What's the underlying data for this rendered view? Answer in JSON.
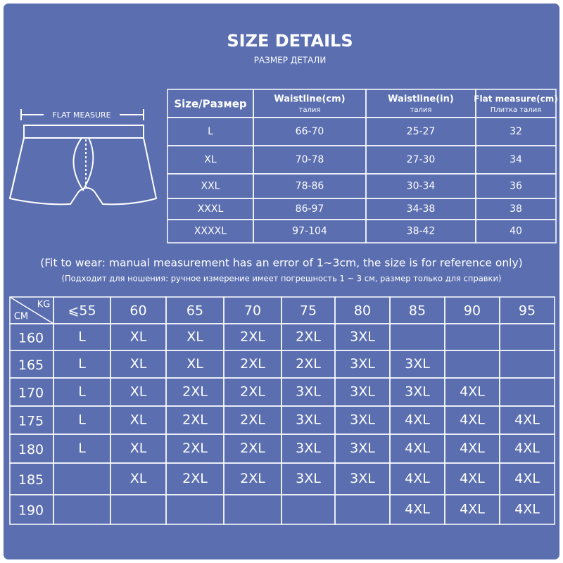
{
  "header": {
    "title": "SIZE DETAILS",
    "subtitle": "РАЗМЕР ДЕТАЛИ"
  },
  "illustration": {
    "label": "FLAT MEASURE"
  },
  "size_table": {
    "columns": [
      {
        "title": "Size/Размер"
      },
      {
        "title": "Waistline(cm)",
        "subtitle": "талия"
      },
      {
        "title": "Waistline(in)",
        "subtitle": "талия"
      },
      {
        "title": "Flat measure(cm)",
        "subtitle": "Плитка талия"
      }
    ],
    "rows": [
      [
        "L",
        "66-70",
        "25-27",
        32
      ],
      [
        "XL",
        "70-78",
        "27-30",
        34
      ],
      [
        "XXL",
        "78-86",
        "30-34",
        36
      ],
      [
        "XXXL",
        "86-97",
        "34-38",
        38
      ],
      [
        "XXXXL",
        "97-104",
        "38-42",
        40
      ]
    ]
  },
  "note": {
    "en": "(Fit to wear: manual measurement has an error of 1~3cm, the size is for reference only)",
    "ru": "(Подходит для ношения: ручное измерение имеет погрешность 1 ~ 3 см, размер только для справки)"
  },
  "weight_table": {
    "col_unit": "KG",
    "row_unit": "CM",
    "columns": [
      "⩽55",
      60,
      65,
      70,
      75,
      80,
      85,
      90,
      95
    ],
    "rows": [
      {
        "height": 160,
        "sizes": [
          "L",
          "XL",
          "XL",
          "2XL",
          "2XL",
          "3XL",
          null,
          null,
          null
        ]
      },
      {
        "height": 165,
        "sizes": [
          "L",
          "XL",
          "XL",
          "2XL",
          "2XL",
          "3XL",
          "3XL",
          null,
          null
        ]
      },
      {
        "height": 170,
        "sizes": [
          "L",
          "XL",
          "2XL",
          "2XL",
          "3XL",
          "3XL",
          "3XL",
          "4XL",
          null
        ]
      },
      {
        "height": 175,
        "sizes": [
          "L",
          "XL",
          "2XL",
          "2XL",
          "3XL",
          "3XL",
          "4XL",
          "4XL",
          "4XL"
        ]
      },
      {
        "height": 180,
        "sizes": [
          "L",
          "XL",
          "2XL",
          "2XL",
          "3XL",
          "3XL",
          "4XL",
          "4XL",
          "4XL"
        ]
      },
      {
        "height": 185,
        "sizes": [
          null,
          "XL",
          "2XL",
          "2XL",
          "3XL",
          "3XL",
          "4XL",
          "4XL",
          "4XL"
        ]
      },
      {
        "height": 190,
        "sizes": [
          null,
          null,
          null,
          null,
          null,
          null,
          "4XL",
          "4XL",
          "4XL"
        ]
      }
    ]
  }
}
